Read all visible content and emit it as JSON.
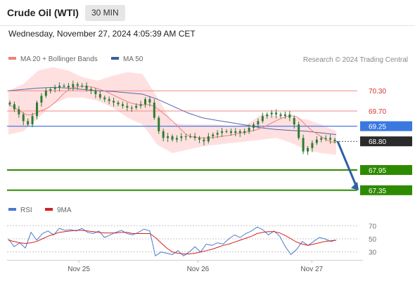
{
  "header": {
    "title": "Crude Oil (WTI)",
    "timeframe": "30 MIN",
    "datetime": "Wednesday, November 27, 2024 4:05:39 AM CET",
    "research": "Research © 2024 Trading Central"
  },
  "legend": {
    "main": [
      {
        "label": "MA 20 + Bollinger Bands",
        "color": "#f08080"
      },
      {
        "label": "MA 50",
        "color": "#3a5fa0"
      }
    ],
    "rsi": [
      {
        "label": "RSI",
        "color": "#4a7bd0"
      },
      {
        "label": "9MA",
        "color": "#d42020"
      }
    ]
  },
  "colors": {
    "candle": "#2e7d32",
    "support": "#2e8b00",
    "resistance": "#f08a80",
    "pivot": "#4a7be0",
    "band": "#ffd6d6",
    "ma20": "#f08080",
    "ma50": "#5566aa",
    "arrow": "#2f5fa3"
  },
  "chart_data": [
    {
      "type": "candlestick",
      "title": "Crude Oil (WTI)",
      "timeframe": "30 MIN",
      "ylim": [
        66.95,
        70.95
      ],
      "x_labels": [
        {
          "label": "Nov 25",
          "pos": 0.205
        },
        {
          "label": "Nov 26",
          "pos": 0.545
        },
        {
          "label": "Nov 27",
          "pos": 0.87
        }
      ],
      "levels": [
        {
          "label": "70.30",
          "value": 70.3,
          "kind": "resistance",
          "color": "#d93030",
          "label_bg": ""
        },
        {
          "label": "69.70",
          "value": 69.7,
          "kind": "resistance",
          "color": "#d93030",
          "label_bg": ""
        },
        {
          "label": "69.25",
          "value": 69.25,
          "kind": "pivot",
          "color": "#ffffff",
          "label_bg": "#3a78e0"
        },
        {
          "label": "68.80",
          "value": 68.8,
          "kind": "last",
          "color": "#ffffff",
          "label_bg": "#2a2a2a"
        },
        {
          "label": "67.95",
          "value": 67.95,
          "kind": "support",
          "color": "#ffffff",
          "label_bg": "#2e8b00"
        },
        {
          "label": "67.35",
          "value": 67.35,
          "kind": "support",
          "color": "#ffffff",
          "label_bg": "#2e8b00"
        }
      ],
      "close": [
        69.9,
        69.75,
        69.6,
        69.4,
        69.3,
        69.55,
        69.95,
        70.15,
        70.3,
        70.35,
        70.4,
        70.45,
        70.45,
        70.4,
        70.5,
        70.45,
        70.45,
        70.35,
        70.3,
        70.2,
        70.1,
        70.05,
        70.0,
        69.95,
        69.9,
        69.85,
        69.8,
        69.8,
        69.85,
        69.9,
        70.05,
        69.95,
        69.5,
        69.1,
        68.9,
        68.95,
        68.85,
        68.9,
        68.95,
        68.95,
        68.95,
        68.9,
        68.85,
        68.8,
        68.95,
        69.0,
        69.05,
        69.1,
        69.1,
        69.05,
        69.1,
        69.05,
        69.1,
        69.2,
        69.3,
        69.4,
        69.55,
        69.6,
        69.65,
        69.6,
        69.55,
        69.6,
        69.5,
        69.3,
        68.9,
        68.5,
        68.6,
        68.75,
        68.85,
        68.9,
        68.9,
        68.85,
        68.8
      ],
      "ma50": [
        70.3,
        70.34,
        70.38,
        70.4,
        70.38,
        70.34,
        70.3,
        70.28,
        70.24,
        70.2,
        70.05,
        69.85,
        69.65,
        69.5,
        69.42,
        69.35,
        69.28,
        69.2,
        69.15,
        69.12,
        69.1,
        69.05,
        69.0
      ],
      "bands": {
        "upper": [
          70.3,
          70.5,
          70.9,
          71.0,
          70.9,
          70.7,
          70.6,
          70.75,
          70.85,
          70.8,
          70.1,
          69.35,
          69.3,
          69.3,
          69.3,
          69.25,
          69.3,
          69.6,
          69.55,
          69.5,
          69.45,
          69.3,
          69.1
        ],
        "lower": [
          69.0,
          69.1,
          69.5,
          69.9,
          70.1,
          70.1,
          70.0,
          69.8,
          69.5,
          69.3,
          68.7,
          68.45,
          68.55,
          68.65,
          68.7,
          68.75,
          68.8,
          68.85,
          68.9,
          68.75,
          68.55,
          68.45,
          68.4
        ]
      },
      "forecast_arrow": {
        "from": 68.8,
        "to": 67.35
      }
    },
    {
      "type": "line",
      "title": "RSI",
      "ylim": [
        20,
        80
      ],
      "y_ticks": [
        70,
        50,
        30
      ],
      "series": [
        {
          "name": "RSI",
          "color": "#4a7bd0",
          "values": [
            50,
            38,
            44,
            36,
            60,
            48,
            58,
            62,
            56,
            66,
            63,
            64,
            62,
            66,
            60,
            58,
            62,
            52,
            56,
            60,
            63,
            58,
            56,
            60,
            65,
            62,
            24,
            30,
            28,
            26,
            32,
            24,
            30,
            38,
            30,
            42,
            40,
            44,
            42,
            50,
            56,
            52,
            58,
            62,
            68,
            64,
            56,
            62,
            54,
            38,
            26,
            34,
            46,
            40,
            46,
            52,
            50,
            46,
            48
          ]
        },
        {
          "name": "9MA",
          "color": "#d42020",
          "values": [
            48,
            46,
            44,
            43,
            44,
            46,
            50,
            54,
            57,
            60,
            61,
            62,
            63,
            63,
            62,
            61,
            60,
            59,
            59,
            59,
            60,
            60,
            58,
            58,
            58,
            58,
            52,
            44,
            36,
            30,
            28,
            27,
            27,
            28,
            30,
            32,
            34,
            37,
            40,
            42,
            45,
            48,
            51,
            54,
            58,
            60,
            61,
            61,
            59,
            55,
            50,
            45,
            42,
            40,
            42,
            44,
            46,
            47,
            48
          ]
        }
      ]
    }
  ]
}
